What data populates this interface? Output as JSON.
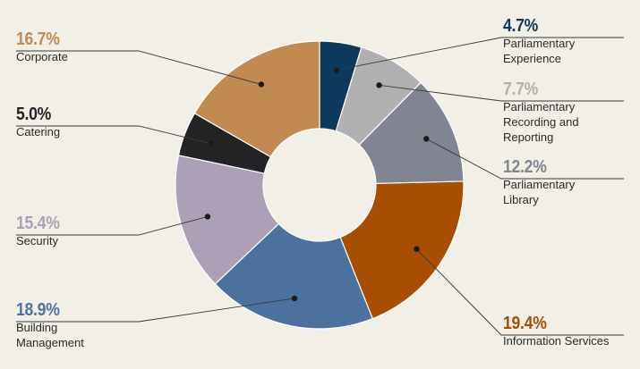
{
  "chart_data": {
    "type": "pie",
    "variant": "donut",
    "slices": [
      {
        "label": "Parliamentary Experience",
        "pct_text": "4.7%",
        "value": 4.7,
        "color": "#0d3a5c"
      },
      {
        "label": "Parliamentary Recording and Reporting",
        "pct_text": "7.7%",
        "value": 7.7,
        "color": "#b0b0b2"
      },
      {
        "label": "Parliamentary Library",
        "pct_text": "12.2%",
        "value": 12.2,
        "color": "#808591"
      },
      {
        "label": "Information Services",
        "pct_text": "19.4%",
        "value": 19.4,
        "color": "#a84e00"
      },
      {
        "label": "Building Management",
        "pct_text": "18.9%",
        "value": 18.9,
        "color": "#4a729d"
      },
      {
        "label": "Security",
        "pct_text": "15.4%",
        "value": 15.4,
        "color": "#aba0b6"
      },
      {
        "label": "Catering",
        "pct_text": "5.0%",
        "value": 5.0,
        "color": "#232326"
      },
      {
        "label": "Corporate",
        "pct_text": "16.7%",
        "value": 16.7,
        "color": "#c18a51"
      }
    ]
  },
  "labels": {
    "parl_experience": {
      "pct": "4.7%",
      "name": "Parliamentary\nExperience",
      "color": "#0d3a5c"
    },
    "parl_recording": {
      "pct": "7.7%",
      "name": "Parliamentary\nRecording and\nReporting",
      "color": "#b0b0b2"
    },
    "parl_library": {
      "pct": "12.2%",
      "name": "Parliamentary\nLibrary",
      "color": "#808591"
    },
    "info_services": {
      "pct": "19.4%",
      "name": "Information Services",
      "color": "#a84e00"
    },
    "building_mgmt": {
      "pct": "18.9%",
      "name": "Building\nManagement",
      "color": "#4a729d"
    },
    "security": {
      "pct": "15.4%",
      "name": "Security",
      "color": "#aba0b6"
    },
    "catering": {
      "pct": "5.0%",
      "name": "Catering",
      "color": "#232326"
    },
    "corporate": {
      "pct": "16.7%",
      "name": "Corporate",
      "color": "#c18a51"
    }
  }
}
